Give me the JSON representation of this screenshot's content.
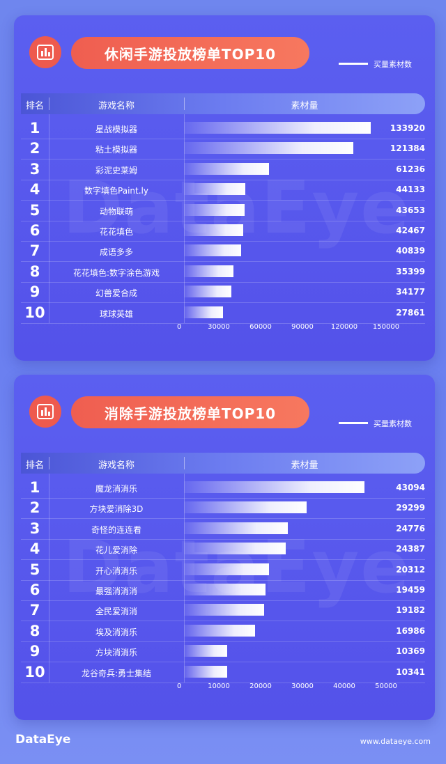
{
  "brand": {
    "logo": "DataEye",
    "url": "www.dataeye.com",
    "watermark": "DataEye"
  },
  "colors": {
    "background": "#6f86ee",
    "panel": "#5654ec",
    "accent": "#ef5e50",
    "bar": "#ffffff"
  },
  "chart_data": [
    {
      "type": "bar",
      "orientation": "horizontal",
      "title": "休闲手游投放榜单TOP10",
      "legend": "买量素材数",
      "legend_position": "top-right",
      "headers": {
        "rank": "排名",
        "name": "游戏名称",
        "value": "素材量"
      },
      "ranks": [
        "1",
        "2",
        "3",
        "4",
        "5",
        "6",
        "7",
        "8",
        "9",
        "10"
      ],
      "categories": [
        "星战模拟器",
        "粘土模拟器",
        "彩泥史莱姆",
        "数字填色Paint.ly",
        "动物联萌",
        "花花填色",
        "成语多多",
        "花花填色:数字涂色游戏",
        "幻兽爱合成",
        "球球英雄"
      ],
      "values": [
        133920,
        121384,
        61236,
        44133,
        43653,
        42467,
        40839,
        35399,
        34177,
        27861
      ],
      "xlim": [
        0,
        150000
      ],
      "xticks": [
        "0",
        "30000",
        "60000",
        "90000",
        "120000",
        "150000"
      ]
    },
    {
      "type": "bar",
      "orientation": "horizontal",
      "title": "消除手游投放榜单TOP10",
      "legend": "买量素材数",
      "legend_position": "top-right",
      "headers": {
        "rank": "排名",
        "name": "游戏名称",
        "value": "素材量"
      },
      "ranks": [
        "1",
        "2",
        "3",
        "4",
        "5",
        "6",
        "7",
        "8",
        "9",
        "10"
      ],
      "categories": [
        "魔龙消消乐",
        "方块爱消除3D",
        "奇怪的连连看",
        "花儿爱消除",
        "开心消消乐",
        "最强消消消",
        "全民爱消消",
        "埃及消消乐",
        "方块消消乐",
        "龙谷奇兵:勇士集结"
      ],
      "values": [
        43094,
        29299,
        24776,
        24387,
        20312,
        19459,
        19182,
        16986,
        10369,
        10341
      ],
      "xlim": [
        0,
        50000
      ],
      "xticks": [
        "0",
        "10000",
        "20000",
        "30000",
        "40000",
        "50000"
      ]
    }
  ]
}
